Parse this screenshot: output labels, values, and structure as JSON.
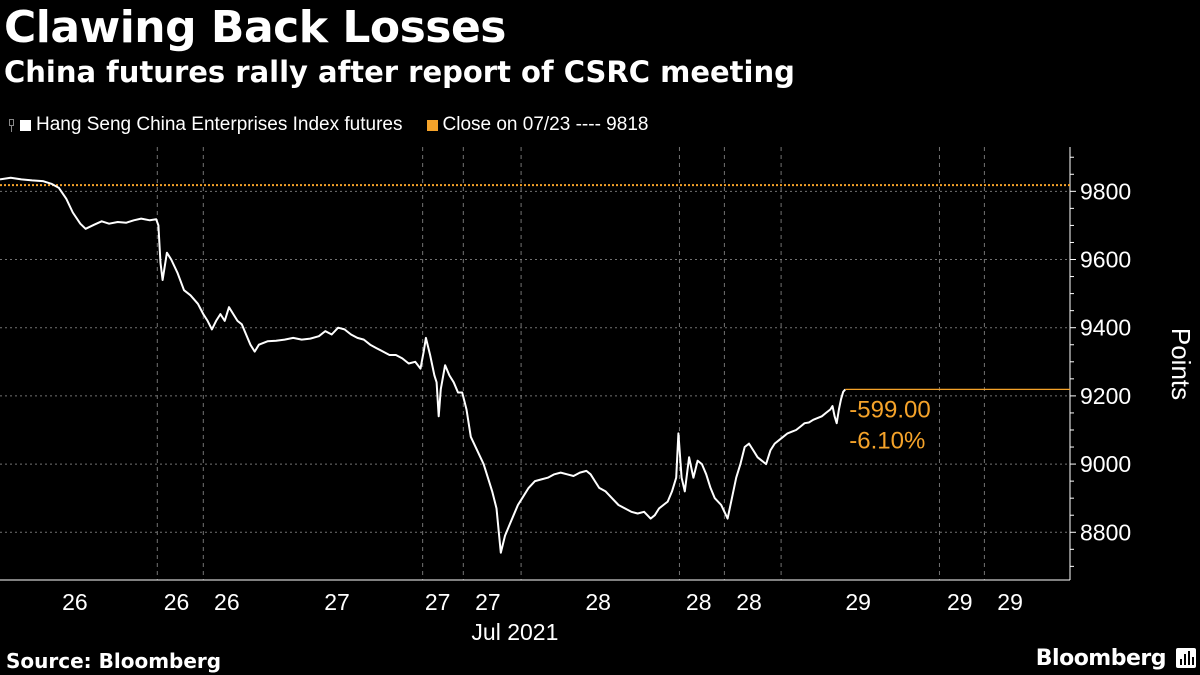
{
  "title": "Clawing Back Losses",
  "subtitle": "China futures rally after report of CSRC meeting",
  "source": "Source: Bloomberg",
  "brand": "Bloomberg",
  "colors": {
    "background": "#000000",
    "series": "#ffffff",
    "reference": "#f5a32a",
    "grid": "#888888"
  },
  "chart_data": {
    "type": "line",
    "legend": [
      {
        "name": "Hang Seng China Enterprises Index futures",
        "color": "#ffffff"
      },
      {
        "name": "Close on 07/23 ---- 9818",
        "color": "#f5a32a"
      }
    ],
    "ylabel": "Points",
    "ylim": [
      8660,
      9930
    ],
    "yticks": [
      8800,
      9000,
      9200,
      9400,
      9600,
      9800
    ],
    "xtick_labels": [
      "26",
      "26",
      "26",
      "27",
      "27",
      "27",
      "28",
      "28",
      "28",
      "29",
      "29",
      "29"
    ],
    "xaxis_caption": "Jul 2021",
    "x_index_range": [
      0,
      1000
    ],
    "xtick_index": [
      70,
      165,
      212,
      315,
      409,
      456,
      559,
      653,
      700,
      802,
      897,
      944
    ],
    "session_break_index": [
      147,
      190,
      395,
      433,
      487,
      635,
      677,
      730,
      878,
      920
    ],
    "reference_line": {
      "label": "Close on 07/23",
      "value": 9818
    },
    "last_value_annotation": {
      "change": "-599.00",
      "percent": "-6.10%",
      "value": 9219
    },
    "series": [
      {
        "name": "Hang Seng China Enterprises Index futures",
        "points": [
          [
            0,
            9835
          ],
          [
            10,
            9840
          ],
          [
            20,
            9835
          ],
          [
            30,
            9832
          ],
          [
            40,
            9830
          ],
          [
            48,
            9822
          ],
          [
            55,
            9810
          ],
          [
            62,
            9778
          ],
          [
            68,
            9738
          ],
          [
            75,
            9705
          ],
          [
            80,
            9690
          ],
          [
            88,
            9702
          ],
          [
            95,
            9712
          ],
          [
            102,
            9705
          ],
          [
            110,
            9710
          ],
          [
            118,
            9708
          ],
          [
            125,
            9715
          ],
          [
            132,
            9720
          ],
          [
            140,
            9715
          ],
          [
            146,
            9718
          ],
          [
            148,
            9700
          ],
          [
            150,
            9590
          ],
          [
            152,
            9540
          ],
          [
            156,
            9620
          ],
          [
            160,
            9600
          ],
          [
            166,
            9560
          ],
          [
            172,
            9510
          ],
          [
            178,
            9495
          ],
          [
            185,
            9470
          ],
          [
            190,
            9440
          ],
          [
            194,
            9420
          ],
          [
            198,
            9395
          ],
          [
            202,
            9420
          ],
          [
            206,
            9440
          ],
          [
            210,
            9420
          ],
          [
            214,
            9460
          ],
          [
            218,
            9440
          ],
          [
            222,
            9420
          ],
          [
            226,
            9410
          ],
          [
            230,
            9380
          ],
          [
            234,
            9350
          ],
          [
            238,
            9330
          ],
          [
            242,
            9350
          ],
          [
            250,
            9360
          ],
          [
            258,
            9362
          ],
          [
            266,
            9365
          ],
          [
            274,
            9370
          ],
          [
            282,
            9365
          ],
          [
            290,
            9368
          ],
          [
            298,
            9375
          ],
          [
            304,
            9390
          ],
          [
            310,
            9380
          ],
          [
            316,
            9400
          ],
          [
            322,
            9395
          ],
          [
            328,
            9380
          ],
          [
            334,
            9370
          ],
          [
            340,
            9365
          ],
          [
            346,
            9350
          ],
          [
            352,
            9340
          ],
          [
            358,
            9330
          ],
          [
            364,
            9320
          ],
          [
            370,
            9320
          ],
          [
            376,
            9310
          ],
          [
            382,
            9295
          ],
          [
            388,
            9300
          ],
          [
            393,
            9280
          ],
          [
            396,
            9330
          ],
          [
            398,
            9370
          ],
          [
            402,
            9320
          ],
          [
            406,
            9260
          ],
          [
            408,
            9240
          ],
          [
            410,
            9140
          ],
          [
            412,
            9220
          ],
          [
            416,
            9290
          ],
          [
            420,
            9260
          ],
          [
            424,
            9240
          ],
          [
            428,
            9210
          ],
          [
            432,
            9210
          ],
          [
            436,
            9160
          ],
          [
            440,
            9080
          ],
          [
            446,
            9040
          ],
          [
            452,
            9000
          ],
          [
            456,
            8960
          ],
          [
            460,
            8920
          ],
          [
            464,
            8870
          ],
          [
            468,
            8740
          ],
          [
            472,
            8790
          ],
          [
            476,
            8820
          ],
          [
            480,
            8850
          ],
          [
            484,
            8880
          ],
          [
            488,
            8900
          ],
          [
            494,
            8930
          ],
          [
            500,
            8950
          ],
          [
            506,
            8955
          ],
          [
            512,
            8960
          ],
          [
            518,
            8970
          ],
          [
            524,
            8975
          ],
          [
            530,
            8970
          ],
          [
            536,
            8965
          ],
          [
            542,
            8975
          ],
          [
            548,
            8980
          ],
          [
            552,
            8970
          ],
          [
            556,
            8950
          ],
          [
            560,
            8930
          ],
          [
            566,
            8920
          ],
          [
            572,
            8900
          ],
          [
            578,
            8880
          ],
          [
            584,
            8870
          ],
          [
            590,
            8860
          ],
          [
            596,
            8855
          ],
          [
            602,
            8860
          ],
          [
            608,
            8840
          ],
          [
            612,
            8850
          ],
          [
            616,
            8870
          ],
          [
            620,
            8880
          ],
          [
            624,
            8890
          ],
          [
            628,
            8920
          ],
          [
            632,
            8960
          ],
          [
            634,
            9090
          ],
          [
            637,
            8960
          ],
          [
            640,
            8920
          ],
          [
            644,
            9020
          ],
          [
            648,
            8960
          ],
          [
            652,
            9010
          ],
          [
            656,
            9000
          ],
          [
            660,
            8970
          ],
          [
            664,
            8930
          ],
          [
            668,
            8900
          ],
          [
            674,
            8880
          ],
          [
            680,
            8840
          ],
          [
            684,
            8900
          ],
          [
            688,
            8960
          ],
          [
            692,
            9000
          ],
          [
            696,
            9050
          ],
          [
            700,
            9060
          ],
          [
            704,
            9040
          ],
          [
            708,
            9020
          ],
          [
            712,
            9010
          ],
          [
            716,
            9000
          ],
          [
            720,
            9040
          ],
          [
            724,
            9060
          ],
          [
            728,
            9070
          ],
          [
            732,
            9080
          ],
          [
            736,
            9090
          ],
          [
            740,
            9095
          ],
          [
            744,
            9100
          ],
          [
            748,
            9110
          ],
          [
            752,
            9120
          ],
          [
            756,
            9122
          ],
          [
            760,
            9130
          ],
          [
            764,
            9135
          ],
          [
            768,
            9140
          ],
          [
            772,
            9150
          ],
          [
            776,
            9160
          ],
          [
            778,
            9170
          ],
          [
            780,
            9140
          ],
          [
            782,
            9120
          ],
          [
            784,
            9160
          ],
          [
            786,
            9190
          ],
          [
            788,
            9212
          ],
          [
            790,
            9219
          ]
        ]
      }
    ]
  }
}
